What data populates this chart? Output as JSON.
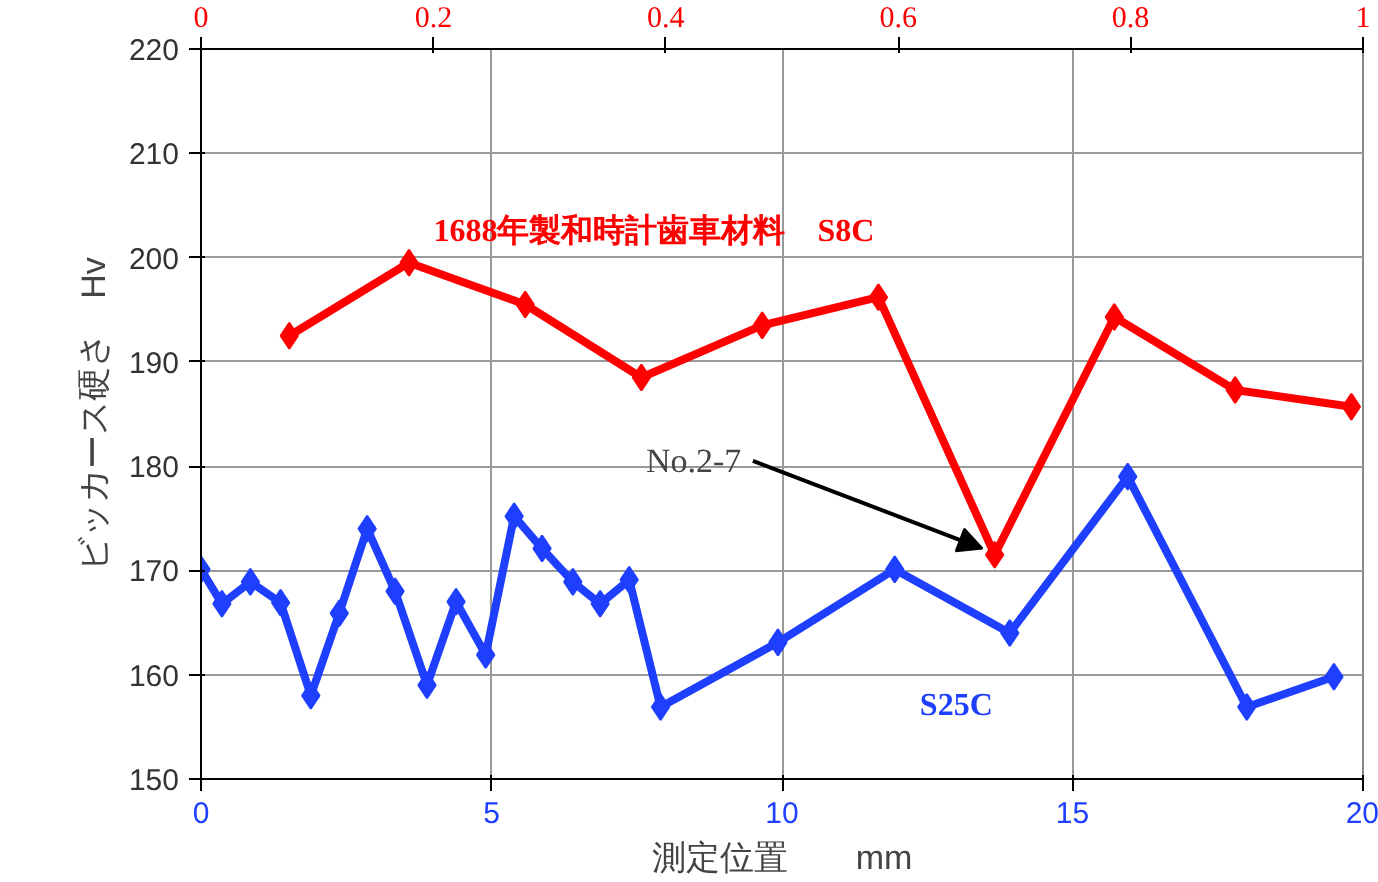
{
  "chart_data": {
    "type": "line",
    "xlabel": "測定位置　　mm",
    "ylabel": "ビッカース硬さ　Hv",
    "xlim": [
      0,
      20
    ],
    "xticks": [
      0,
      5,
      10,
      15,
      20
    ],
    "x2lim": [
      0,
      1
    ],
    "x2ticks": [
      0,
      0.2,
      0.4,
      0.6,
      0.8,
      1
    ],
    "ylim": [
      150,
      220
    ],
    "yticks": [
      150,
      160,
      170,
      180,
      190,
      200,
      210,
      220
    ],
    "grid": true,
    "marker": "diamond",
    "line_style": "solid",
    "series": [
      {
        "name": "1688年製和時計歯車材料　S8C",
        "color": "#ff0000",
        "axis": "x2",
        "x": [
          0.076,
          0.179,
          0.279,
          0.379,
          0.483,
          0.583,
          0.683,
          0.786,
          0.89,
          0.99
        ],
        "values": [
          192.5,
          199.5,
          195.5,
          188.5,
          193.5,
          196.2,
          171.5,
          194.3,
          187.3,
          185.7
        ]
      },
      {
        "name": "S25C",
        "color": "#1f3fff",
        "x": [
          0,
          0.36,
          0.85,
          1.37,
          1.89,
          2.38,
          2.86,
          3.34,
          3.89,
          4.39,
          4.9,
          5.39,
          5.87,
          6.4,
          6.87,
          7.37,
          7.91,
          9.93,
          11.94,
          13.92,
          15.95,
          18.0,
          19.5
        ],
        "values": [
          170.1,
          166.8,
          168.9,
          166.9,
          158,
          165.9,
          174,
          168,
          159,
          167,
          161.9,
          175.2,
          172.1,
          168.9,
          166.8,
          169.1,
          156.9,
          163.1,
          170.1,
          164,
          179,
          156.9,
          159.8
        ]
      }
    ],
    "annotations": [
      {
        "text": "No.2-7",
        "x": 13.7,
        "y": 171.5
      }
    ]
  }
}
